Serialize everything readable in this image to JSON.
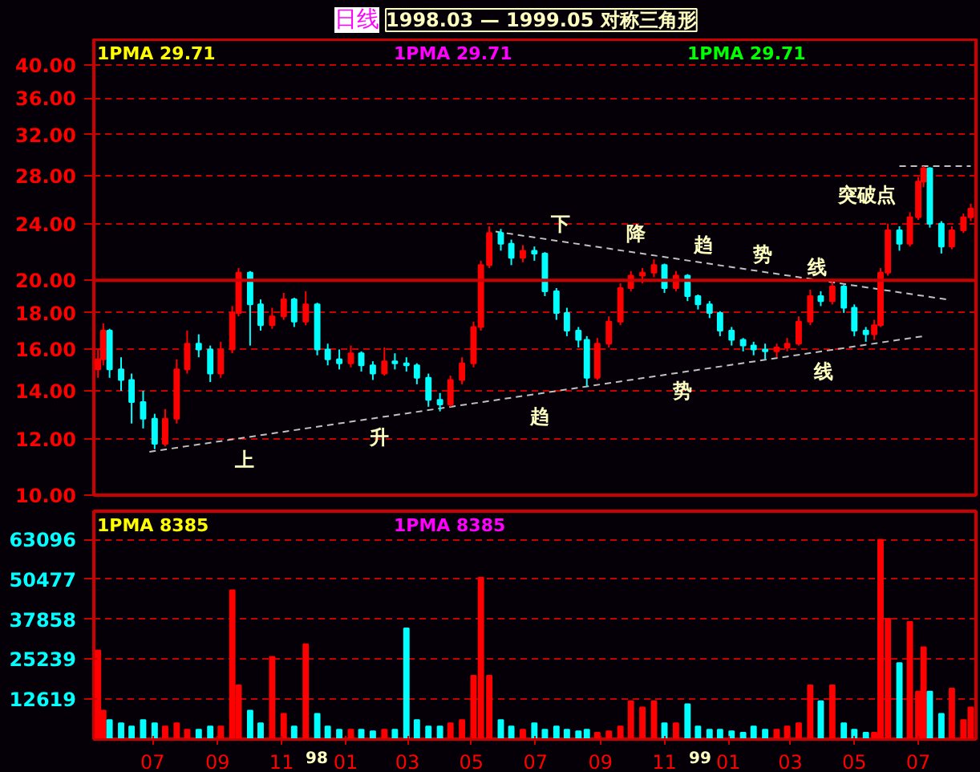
{
  "chart_data": [
    {
      "type": "candlestick",
      "title": "1998.03 — 1999.05 对称三角形",
      "subtitle": "日线",
      "annotations": [
        "1PMA  29.71",
        "1PMA  29.71",
        "1PMA  29.71",
        "上",
        "升",
        "趋",
        "势",
        "线",
        "下",
        "降",
        "趋",
        "势",
        "线",
        "突破点"
      ],
      "x": [
        "1997-05-10",
        "1997-05-15",
        "1997-05-21",
        "1997-06-01",
        "1997-06-11",
        "1997-06-22",
        "1997-07-03",
        "1997-07-13",
        "1997-07-24",
        "1997-08-03",
        "1997-08-14",
        "1997-08-25",
        "1997-09-04",
        "1997-09-15",
        "1997-09-21",
        "1997-10-02",
        "1997-10-12",
        "1997-10-23",
        "1997-11-03",
        "1997-11-13",
        "1997-11-24",
        "1997-12-05",
        "1997-12-15",
        "1997-12-26",
        "1998-01-06",
        "1998-01-16",
        "1998-01-27",
        "1998-02-07",
        "1998-02-17",
        "1998-02-28",
        "1998-03-10",
        "1998-03-21",
        "1998-04-01",
        "1998-04-11",
        "1998-04-22",
        "1998-05-03",
        "1998-05-10",
        "1998-05-18",
        "1998-05-29",
        "1998-06-08",
        "1998-06-19",
        "1998-06-30",
        "1998-07-10",
        "1998-07-21",
        "1998-07-31",
        "1998-08-11",
        "1998-08-19",
        "1998-08-29",
        "1998-09-09",
        "1998-09-20",
        "1998-09-30",
        "1998-10-11",
        "1998-10-22",
        "1998-11-01",
        "1998-11-12",
        "1998-11-23",
        "1998-12-03",
        "1998-12-14",
        "1998-12-24",
        "1999-01-04",
        "1999-01-15",
        "1999-01-25",
        "1999-02-05",
        "1999-02-16",
        "1999-02-26",
        "1999-03-09",
        "1999-03-20",
        "1999-03-30",
        "1999-04-10",
        "1999-04-21",
        "1999-05-01",
        "1999-05-12",
        "1999-05-20",
        "1999-05-26",
        "1999-06-02",
        "1999-06-13",
        "1999-06-23",
        "1999-07-01",
        "1999-07-06",
        "1999-07-12",
        "1999-07-23",
        "1999-08-02",
        "1999-08-13",
        "1999-08-20"
      ],
      "ohlc": [
        [
          15.0,
          16.0,
          14.6,
          15.5
        ],
        [
          15.5,
          17.4,
          15.2,
          17.0
        ],
        [
          17.0,
          17.1,
          14.6,
          15.0
        ],
        [
          15.0,
          15.6,
          14.0,
          14.5
        ],
        [
          14.5,
          14.8,
          12.6,
          13.5
        ],
        [
          13.5,
          14.0,
          12.4,
          12.8
        ],
        [
          12.8,
          13.0,
          11.6,
          11.8
        ],
        [
          11.8,
          13.2,
          11.7,
          12.8
        ],
        [
          12.8,
          15.5,
          12.6,
          15.0
        ],
        [
          15.0,
          17.0,
          14.8,
          16.3
        ],
        [
          16.3,
          16.8,
          15.6,
          16.0
        ],
        [
          16.0,
          16.2,
          14.4,
          14.8
        ],
        [
          14.8,
          16.4,
          14.6,
          16.0
        ],
        [
          16.0,
          18.4,
          15.8,
          18.0
        ],
        [
          18.0,
          20.8,
          17.8,
          20.5
        ],
        [
          20.5,
          20.6,
          16.2,
          18.5
        ],
        [
          18.5,
          18.8,
          17.0,
          17.3
        ],
        [
          17.3,
          18.3,
          17.1,
          17.8
        ],
        [
          17.8,
          19.2,
          17.6,
          18.8
        ],
        [
          18.8,
          18.9,
          17.2,
          17.5
        ],
        [
          17.5,
          19.3,
          17.3,
          18.5
        ],
        [
          18.5,
          18.6,
          15.7,
          16.0
        ],
        [
          16.0,
          16.3,
          15.2,
          15.5
        ],
        [
          15.5,
          16.0,
          15.0,
          15.3
        ],
        [
          15.3,
          16.2,
          15.1,
          15.8
        ],
        [
          15.8,
          15.9,
          14.9,
          15.2
        ],
        [
          15.2,
          15.4,
          14.5,
          14.8
        ],
        [
          14.8,
          16.1,
          14.7,
          15.4
        ],
        [
          15.4,
          15.8,
          15.0,
          15.3
        ],
        [
          15.3,
          15.6,
          14.9,
          15.2
        ],
        [
          15.2,
          15.3,
          14.3,
          14.6
        ],
        [
          14.6,
          14.8,
          13.3,
          13.6
        ],
        [
          13.6,
          13.9,
          13.1,
          13.4
        ],
        [
          13.4,
          14.7,
          13.3,
          14.5
        ],
        [
          14.5,
          15.6,
          14.3,
          15.3
        ],
        [
          15.3,
          17.5,
          15.1,
          17.2
        ],
        [
          17.2,
          21.3,
          17.0,
          21.0
        ],
        [
          21.0,
          23.8,
          20.8,
          23.3
        ],
        [
          23.3,
          23.6,
          22.0,
          22.5
        ],
        [
          22.5,
          22.8,
          21.0,
          21.5
        ],
        [
          21.5,
          22.4,
          21.2,
          22.0
        ],
        [
          22.0,
          22.3,
          21.3,
          21.8
        ],
        [
          21.8,
          21.9,
          19.0,
          19.3
        ],
        [
          19.3,
          19.5,
          17.6,
          18.0
        ],
        [
          18.0,
          18.3,
          16.7,
          17.0
        ],
        [
          17.0,
          17.2,
          16.1,
          16.5
        ],
        [
          16.5,
          16.7,
          14.2,
          14.6
        ],
        [
          14.6,
          16.6,
          14.5,
          16.3
        ],
        [
          16.3,
          17.8,
          16.1,
          17.5
        ],
        [
          17.5,
          19.8,
          17.3,
          19.5
        ],
        [
          19.5,
          20.6,
          19.3,
          20.3
        ],
        [
          20.3,
          20.8,
          19.8,
          20.5
        ],
        [
          20.5,
          21.4,
          20.2,
          21.0
        ],
        [
          21.0,
          21.1,
          19.2,
          19.5
        ],
        [
          19.5,
          20.6,
          19.3,
          20.3
        ],
        [
          20.3,
          20.4,
          18.7,
          19.0
        ],
        [
          19.0,
          19.1,
          18.2,
          18.5
        ],
        [
          18.5,
          18.7,
          17.7,
          18.0
        ],
        [
          18.0,
          18.1,
          16.7,
          17.0
        ],
        [
          17.0,
          17.2,
          16.2,
          16.5
        ],
        [
          16.5,
          16.6,
          15.9,
          16.2
        ],
        [
          16.2,
          16.4,
          15.7,
          16.0
        ],
        [
          16.0,
          16.3,
          15.5,
          15.9
        ],
        [
          15.9,
          16.3,
          15.6,
          16.1
        ],
        [
          16.1,
          16.6,
          15.9,
          16.3
        ],
        [
          16.3,
          17.8,
          16.2,
          17.5
        ],
        [
          17.5,
          19.4,
          17.3,
          19.0
        ],
        [
          19.0,
          19.3,
          18.4,
          18.7
        ],
        [
          18.7,
          19.9,
          18.5,
          19.6
        ],
        [
          19.6,
          19.7,
          18.0,
          18.3
        ],
        [
          18.3,
          18.5,
          16.7,
          17.0
        ],
        [
          17.0,
          17.2,
          16.4,
          16.8
        ],
        [
          16.8,
          17.6,
          16.5,
          17.3
        ],
        [
          17.3,
          20.8,
          17.2,
          20.5
        ],
        [
          20.5,
          24.0,
          20.3,
          23.5
        ],
        [
          23.5,
          23.8,
          22.0,
          22.5
        ],
        [
          22.5,
          24.9,
          22.3,
          24.5
        ],
        [
          24.5,
          27.9,
          24.3,
          27.5
        ],
        [
          27.5,
          28.9,
          27.0,
          28.7
        ],
        [
          28.7,
          28.8,
          23.7,
          24.0
        ],
        [
          24.0,
          24.2,
          21.8,
          22.3
        ],
        [
          22.3,
          23.8,
          22.1,
          23.5
        ],
        [
          23.5,
          24.8,
          23.3,
          24.5
        ],
        [
          24.5,
          25.6,
          24.2,
          25.2
        ]
      ],
      "colors": [
        "#ff0000",
        "#ff0000",
        "#00ffff",
        "#00ffff",
        "#00ffff",
        "#00ffff",
        "#00ffff",
        "#ff0000",
        "#ff0000",
        "#ff0000",
        "#00ffff",
        "#00ffff",
        "#ff0000",
        "#ff0000",
        "#ff0000",
        "#00ffff",
        "#00ffff",
        "#ff0000",
        "#ff0000",
        "#00ffff",
        "#ff0000",
        "#00ffff",
        "#00ffff",
        "#00ffff",
        "#ff0000",
        "#00ffff",
        "#00ffff",
        "#ff0000",
        "#00ffff",
        "#00ffff",
        "#00ffff",
        "#00ffff",
        "#00ffff",
        "#ff0000",
        "#ff0000",
        "#ff0000",
        "#ff0000",
        "#ff0000",
        "#00ffff",
        "#00ffff",
        "#ff0000",
        "#00ffff",
        "#00ffff",
        "#00ffff",
        "#00ffff",
        "#00ffff",
        "#00ffff",
        "#ff0000",
        "#ff0000",
        "#ff0000",
        "#ff0000",
        "#ff0000",
        "#ff0000",
        "#00ffff",
        "#ff0000",
        "#00ffff",
        "#00ffff",
        "#00ffff",
        "#00ffff",
        "#00ffff",
        "#00ffff",
        "#00ffff",
        "#00ffff",
        "#ff0000",
        "#ff0000",
        "#ff0000",
        "#ff0000",
        "#00ffff",
        "#ff0000",
        "#00ffff",
        "#00ffff",
        "#00ffff",
        "#ff0000",
        "#ff0000",
        "#ff0000",
        "#00ffff",
        "#ff0000",
        "#ff0000",
        "#ff0000",
        "#00ffff",
        "#00ffff",
        "#ff0000",
        "#ff0000",
        "#ff0000"
      ],
      "series": [
        {
          "type": "line",
          "x": [
            "1997-06-28",
            "1999-07-06"
          ],
          "values": [
            11.5,
            16.7
          ],
          "color": "#c0c0c0",
          "line_style": "dashed"
        },
        {
          "type": "line",
          "x": [
            "1998-05-24",
            "1999-07-28"
          ],
          "values": [
            23.4,
            18.8
          ],
          "color": "#c0c0c0",
          "line_style": "dashed"
        },
        {
          "type": "line",
          "x": [
            "1999-06-13",
            "1999-08-20"
          ],
          "values": [
            28.9,
            28.9
          ],
          "color": "#c0c0c0",
          "line_style": "dashed"
        }
      ],
      "ref_lines": [
        {
          "axis": "y",
          "value": 20,
          "color": "#cc0000",
          "line_style": "solid"
        }
      ],
      "log": true,
      "xlim": [
        "1997-05-06",
        "1999-08-25"
      ],
      "ylim": [
        10,
        43.5
      ],
      "yticks": [
        {
          "value": 10,
          "label": "10.00"
        },
        {
          "value": 12,
          "label": "12.00"
        },
        {
          "value": 14,
          "label": "14.00"
        },
        {
          "value": 16,
          "label": "16.00"
        },
        {
          "value": 18,
          "label": "18.00"
        },
        {
          "value": 20,
          "label": "20.00"
        },
        {
          "value": 24,
          "label": "24.00"
        },
        {
          "value": 28,
          "label": "28.00"
        },
        {
          "value": 32,
          "label": "32.00"
        },
        {
          "value": 36,
          "label": "36.00"
        },
        {
          "value": 40,
          "label": "40.00"
        }
      ],
      "grid": "y",
      "tick_labels": "y"
    },
    {
      "type": "bar",
      "annotations": [
        "1PMA  8385",
        "1PMA  8385",
        "98",
        "99"
      ],
      "x": [
        "1997-05-10",
        "1997-05-15",
        "1997-05-21",
        "1997-06-01",
        "1997-06-11",
        "1997-06-22",
        "1997-07-03",
        "1997-07-13",
        "1997-07-24",
        "1997-08-03",
        "1997-08-14",
        "1997-08-25",
        "1997-09-04",
        "1997-09-15",
        "1997-09-21",
        "1997-10-02",
        "1997-10-12",
        "1997-10-23",
        "1997-11-03",
        "1997-11-13",
        "1997-11-24",
        "1997-12-05",
        "1997-12-15",
        "1997-12-26",
        "1998-01-06",
        "1998-01-16",
        "1998-01-27",
        "1998-02-07",
        "1998-02-17",
        "1998-02-28",
        "1998-03-10",
        "1998-03-21",
        "1998-04-01",
        "1998-04-11",
        "1998-04-22",
        "1998-05-03",
        "1998-05-10",
        "1998-05-18",
        "1998-05-29",
        "1998-06-08",
        "1998-06-19",
        "1998-06-30",
        "1998-07-10",
        "1998-07-21",
        "1998-07-31",
        "1998-08-11",
        "1998-08-19",
        "1998-08-29",
        "1998-09-09",
        "1998-09-20",
        "1998-09-30",
        "1998-10-11",
        "1998-10-22",
        "1998-11-01",
        "1998-11-12",
        "1998-11-23",
        "1998-12-03",
        "1998-12-14",
        "1998-12-24",
        "1999-01-04",
        "1999-01-15",
        "1999-01-25",
        "1999-02-05",
        "1999-02-16",
        "1999-02-26",
        "1999-03-09",
        "1999-03-20",
        "1999-03-30",
        "1999-04-10",
        "1999-04-21",
        "1999-05-01",
        "1999-05-12",
        "1999-05-20",
        "1999-05-26",
        "1999-06-02",
        "1999-06-13",
        "1999-06-23",
        "1999-07-01",
        "1999-07-06",
        "1999-07-12",
        "1999-07-23",
        "1999-08-02",
        "1999-08-13",
        "1999-08-20"
      ],
      "values": [
        28000,
        9000,
        6000,
        5000,
        4000,
        6000,
        5000,
        4000,
        5000,
        3000,
        3000,
        4000,
        4000,
        47000,
        17000,
        9000,
        5000,
        26000,
        8000,
        4000,
        30000,
        8000,
        4000,
        3000,
        3000,
        3000,
        2500,
        3000,
        3000,
        35000,
        6000,
        4000,
        4000,
        5000,
        6000,
        20000,
        51000,
        20000,
        6000,
        4000,
        3000,
        5000,
        3000,
        4000,
        3000,
        2500,
        3000,
        2000,
        2500,
        4000,
        12000,
        10000,
        12000,
        5000,
        5000,
        11000,
        4000,
        3000,
        3000,
        2500,
        2000,
        4000,
        3000,
        3000,
        4000,
        5000,
        17000,
        12000,
        17000,
        5000,
        3000,
        2000,
        2000,
        63000,
        38000,
        24000,
        37000,
        15000,
        29000,
        15000,
        8000,
        16000,
        6000,
        10000
      ],
      "colors": [
        "#ff0000",
        "#ff0000",
        "#00ffff",
        "#00ffff",
        "#00ffff",
        "#00ffff",
        "#00ffff",
        "#ff0000",
        "#ff0000",
        "#ff0000",
        "#00ffff",
        "#00ffff",
        "#ff0000",
        "#ff0000",
        "#ff0000",
        "#00ffff",
        "#00ffff",
        "#ff0000",
        "#ff0000",
        "#00ffff",
        "#ff0000",
        "#00ffff",
        "#00ffff",
        "#00ffff",
        "#ff0000",
        "#00ffff",
        "#00ffff",
        "#ff0000",
        "#00ffff",
        "#00ffff",
        "#00ffff",
        "#00ffff",
        "#00ffff",
        "#ff0000",
        "#ff0000",
        "#ff0000",
        "#ff0000",
        "#ff0000",
        "#00ffff",
        "#00ffff",
        "#ff0000",
        "#00ffff",
        "#00ffff",
        "#00ffff",
        "#00ffff",
        "#00ffff",
        "#00ffff",
        "#ff0000",
        "#ff0000",
        "#ff0000",
        "#ff0000",
        "#ff0000",
        "#ff0000",
        "#00ffff",
        "#ff0000",
        "#00ffff",
        "#00ffff",
        "#00ffff",
        "#00ffff",
        "#00ffff",
        "#00ffff",
        "#00ffff",
        "#00ffff",
        "#ff0000",
        "#ff0000",
        "#ff0000",
        "#ff0000",
        "#00ffff",
        "#ff0000",
        "#00ffff",
        "#00ffff",
        "#00ffff",
        "#ff0000",
        "#ff0000",
        "#ff0000",
        "#00ffff",
        "#ff0000",
        "#ff0000",
        "#ff0000",
        "#00ffff",
        "#00ffff",
        "#ff0000",
        "#ff0000",
        "#ff0000"
      ],
      "xlim": [
        "1997-05-06",
        "1999-08-25"
      ],
      "ylim": [
        0,
        72000
      ],
      "xticks": [
        {
          "value": "1997-07-01",
          "label": "07"
        },
        {
          "value": "1997-09-01",
          "label": "09"
        },
        {
          "value": "1997-11-01",
          "label": "11"
        },
        {
          "value": "1998-01-01",
          "label": "01"
        },
        {
          "value": "1998-03-01",
          "label": "03"
        },
        {
          "value": "1998-05-01",
          "label": "05"
        },
        {
          "value": "1998-07-01",
          "label": "07"
        },
        {
          "value": "1998-09-01",
          "label": "09"
        },
        {
          "value": "1998-11-01",
          "label": "11"
        },
        {
          "value": "1999-01-01",
          "label": "01"
        },
        {
          "value": "1999-03-01",
          "label": "03"
        },
        {
          "value": "1999-05-01",
          "label": "05"
        },
        {
          "value": "1999-07-01",
          "label": "07"
        }
      ],
      "yticks": [
        12619,
        25239,
        37858,
        50477,
        63096
      ],
      "grid": "y"
    }
  ]
}
